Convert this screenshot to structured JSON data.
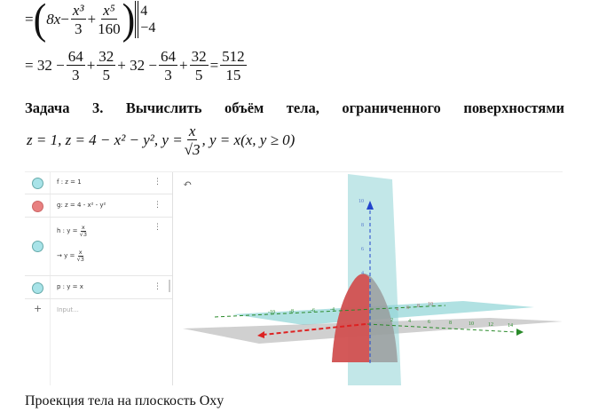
{
  "document": {
    "line1": {
      "prefix": "=",
      "term1": "8x",
      "minus": "−",
      "frac1_num": "x³",
      "frac1_den": "3",
      "plus": "+",
      "frac2_num": "x⁵",
      "frac2_den": "160",
      "upper": "4",
      "lower": "−4"
    },
    "line2": {
      "prefix": "= 32 −",
      "f1n": "64",
      "f1d": "3",
      "p1": "+",
      "f2n": "32",
      "f2d": "5",
      "mid": "+ 32 −",
      "f3n": "64",
      "f3d": "3",
      "p2": "+",
      "f4n": "32",
      "f4d": "5",
      "eq": "=",
      "rn": "512",
      "rd": "15"
    },
    "task_words": [
      "Задача",
      "3.",
      "Вычислить",
      "объём",
      "тела,",
      "ограниченного",
      "поверхностями"
    ],
    "surfaces": {
      "part1": "z = 1, z = 4 − x² − y², y =",
      "fn": "x",
      "fd": "√3",
      "part2": ", y = x(x, y ≥ 0)"
    },
    "caption": "Проекция тела на плоскость Oxy"
  },
  "geogebra": {
    "algebra": [
      {
        "expr": "f : z = 1",
        "color": "#a8e3e8"
      },
      {
        "expr": "g: z = 4 - x² - y²",
        "color": "#e88080"
      },
      {
        "expr_prefix": "h : y =",
        "num": "x",
        "den": "√3",
        "result_prefix": "→  y =",
        "color": "#a8e3e8"
      },
      {
        "expr": "p : y = x",
        "color": "#a8e3e8"
      }
    ],
    "input_placeholder": "Input...",
    "add_icon": "+",
    "menu_icon": "⋮",
    "undo_icon": "↶",
    "z_ticks": [
      "10",
      "8",
      "6",
      "4"
    ],
    "y_ticks_neg": [
      "-10",
      "-8",
      "-6",
      "-4"
    ],
    "y_ticks_pos": [
      "2",
      "4",
      "6",
      "8",
      "10",
      "12",
      "14"
    ],
    "x_ticks": [
      "4",
      "6",
      "8",
      "10"
    ],
    "colors": {
      "x_axis": "#d22",
      "y_axis": "#2a8a2a",
      "z_axis": "#2244cc",
      "plane": "#7fcfd4",
      "paraboloid": "#d94a4a"
    }
  }
}
